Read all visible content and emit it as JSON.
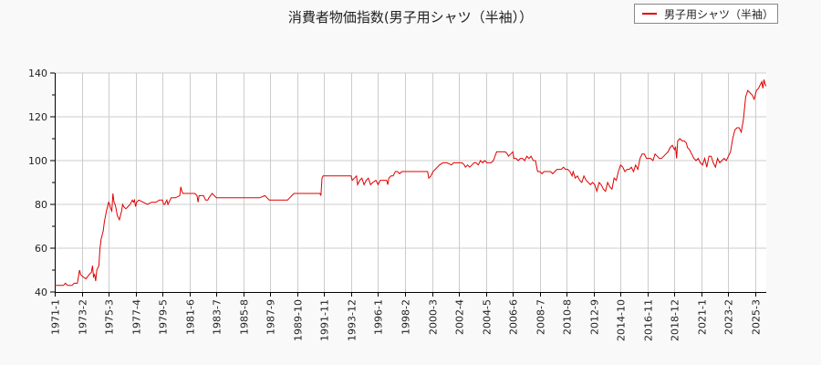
{
  "chart_data": {
    "type": "line",
    "title": "消費者物価指数(男子用シャツ（半袖））",
    "xlabel": "",
    "ylabel": "",
    "ylim": [
      40,
      140
    ],
    "yticks": [
      40,
      60,
      80,
      100,
      120,
      140
    ],
    "grid": true,
    "legend_position": "top-right",
    "x_tick_labels": [
      "1971-1",
      "1973-2",
      "1975-3",
      "1977-4",
      "1979-5",
      "1981-6",
      "1983-7",
      "1985-8",
      "1987-9",
      "1989-10",
      "1991-11",
      "1993-12",
      "1996-1",
      "1998-2",
      "2000-3",
      "2002-4",
      "2004-5",
      "2006-6",
      "2008-7",
      "2010-8",
      "2012-9",
      "2014-10",
      "2016-11",
      "2018-12",
      "2021-1",
      "2023-2",
      "2025-3"
    ],
    "series": [
      {
        "name": "男子用シャツ（半袖）",
        "color": "#e00000",
        "points_month_index_value": [
          [
            0,
            43
          ],
          [
            8,
            43
          ],
          [
            10,
            44
          ],
          [
            12,
            43
          ],
          [
            16,
            43
          ],
          [
            18,
            44
          ],
          [
            21,
            44
          ],
          [
            23,
            50
          ],
          [
            24,
            48
          ],
          [
            26,
            47
          ],
          [
            29,
            46
          ],
          [
            32,
            48
          ],
          [
            34,
            49
          ],
          [
            35,
            52
          ],
          [
            36,
            47
          ],
          [
            37,
            48
          ],
          [
            38,
            45
          ],
          [
            39,
            50
          ],
          [
            41,
            52
          ],
          [
            42,
            60
          ],
          [
            43,
            64
          ],
          [
            45,
            68
          ],
          [
            46,
            72
          ],
          [
            48,
            77
          ],
          [
            50,
            81
          ],
          [
            51,
            80
          ],
          [
            52,
            78
          ],
          [
            53,
            77
          ],
          [
            54,
            85
          ],
          [
            55,
            81
          ],
          [
            56,
            80
          ],
          [
            57,
            78
          ],
          [
            58,
            75
          ],
          [
            60,
            73
          ],
          [
            62,
            77
          ],
          [
            63,
            80
          ],
          [
            64,
            79
          ],
          [
            66,
            78
          ],
          [
            68,
            79
          ],
          [
            70,
            80
          ],
          [
            72,
            82
          ],
          [
            73,
            81
          ],
          [
            74,
            82
          ],
          [
            75,
            79
          ],
          [
            76,
            81
          ],
          [
            78,
            82
          ],
          [
            82,
            81
          ],
          [
            86,
            80
          ],
          [
            90,
            81
          ],
          [
            94,
            81
          ],
          [
            97,
            82
          ],
          [
            100,
            82
          ],
          [
            101,
            80
          ],
          [
            102,
            80
          ],
          [
            104,
            82
          ],
          [
            105,
            80
          ],
          [
            107,
            82
          ],
          [
            108,
            83
          ],
          [
            112,
            83
          ],
          [
            116,
            84
          ],
          [
            117,
            88
          ],
          [
            118,
            86
          ],
          [
            119,
            85
          ],
          [
            122,
            85
          ],
          [
            126,
            85
          ],
          [
            130,
            85
          ],
          [
            132,
            84
          ],
          [
            133,
            81
          ],
          [
            134,
            84
          ],
          [
            138,
            84
          ],
          [
            140,
            82
          ],
          [
            142,
            82
          ],
          [
            143,
            83
          ],
          [
            146,
            85
          ],
          [
            148,
            84
          ],
          [
            150,
            83
          ],
          [
            160,
            83
          ],
          [
            170,
            83
          ],
          [
            180,
            83
          ],
          [
            190,
            83
          ],
          [
            195,
            84
          ],
          [
            197,
            83
          ],
          [
            199,
            82
          ],
          [
            202,
            82
          ],
          [
            210,
            82
          ],
          [
            216,
            82
          ],
          [
            218,
            83
          ],
          [
            220,
            84
          ],
          [
            222,
            85
          ],
          [
            228,
            85
          ],
          [
            235,
            85
          ],
          [
            240,
            85
          ],
          [
            246,
            85
          ],
          [
            247,
            84
          ],
          [
            248,
            92
          ],
          [
            249,
            93
          ],
          [
            260,
            93
          ],
          [
            270,
            93
          ],
          [
            275,
            93
          ],
          [
            276,
            91
          ],
          [
            278,
            92
          ],
          [
            280,
            93
          ],
          [
            281,
            89
          ],
          [
            283,
            91
          ],
          [
            285,
            92
          ],
          [
            287,
            89
          ],
          [
            289,
            91
          ],
          [
            291,
            92
          ],
          [
            293,
            89
          ],
          [
            295,
            90
          ],
          [
            298,
            91
          ],
          [
            300,
            89
          ],
          [
            302,
            91
          ],
          [
            305,
            91
          ],
          [
            308,
            91
          ],
          [
            309,
            89
          ],
          [
            310,
            92
          ],
          [
            312,
            93
          ],
          [
            314,
            93
          ],
          [
            316,
            95
          ],
          [
            318,
            95
          ],
          [
            320,
            94
          ],
          [
            322,
            95
          ],
          [
            330,
            95
          ],
          [
            340,
            95
          ],
          [
            346,
            95
          ],
          [
            347,
            92
          ],
          [
            349,
            93
          ],
          [
            351,
            95
          ],
          [
            353,
            96
          ],
          [
            355,
            97
          ],
          [
            357,
            98
          ],
          [
            360,
            99
          ],
          [
            364,
            99
          ],
          [
            368,
            98
          ],
          [
            370,
            99
          ],
          [
            375,
            99
          ],
          [
            378,
            99
          ],
          [
            380,
            98
          ],
          [
            381,
            97
          ],
          [
            383,
            98
          ],
          [
            385,
            97
          ],
          [
            387,
            98
          ],
          [
            389,
            99
          ],
          [
            391,
            99
          ],
          [
            393,
            98
          ],
          [
            395,
            100
          ],
          [
            397,
            99
          ],
          [
            399,
            100
          ],
          [
            401,
            99
          ],
          [
            403,
            99
          ],
          [
            405,
            99
          ],
          [
            407,
            100
          ],
          [
            410,
            104
          ],
          [
            414,
            104
          ],
          [
            418,
            104
          ],
          [
            420,
            103
          ],
          [
            421,
            102
          ],
          [
            423,
            103
          ],
          [
            425,
            104
          ],
          [
            426,
            101
          ],
          [
            428,
            101
          ],
          [
            430,
            100
          ],
          [
            432,
            101
          ],
          [
            434,
            101
          ],
          [
            436,
            100
          ],
          [
            438,
            102
          ],
          [
            440,
            101
          ],
          [
            442,
            102
          ],
          [
            444,
            100
          ],
          [
            446,
            100
          ],
          [
            448,
            95
          ],
          [
            450,
            95
          ],
          [
            452,
            94
          ],
          [
            454,
            95
          ],
          [
            458,
            95
          ],
          [
            460,
            95
          ],
          [
            462,
            94
          ],
          [
            464,
            95
          ],
          [
            466,
            96
          ],
          [
            468,
            96
          ],
          [
            470,
            96
          ],
          [
            472,
            97
          ],
          [
            474,
            96
          ],
          [
            476,
            96
          ],
          [
            478,
            95
          ],
          [
            480,
            93
          ],
          [
            481,
            95
          ],
          [
            483,
            92
          ],
          [
            485,
            93
          ],
          [
            487,
            91
          ],
          [
            489,
            90
          ],
          [
            491,
            93
          ],
          [
            493,
            91
          ],
          [
            495,
            90
          ],
          [
            497,
            89
          ],
          [
            499,
            90
          ],
          [
            501,
            89
          ],
          [
            503,
            86
          ],
          [
            505,
            90
          ],
          [
            507,
            89
          ],
          [
            509,
            87
          ],
          [
            511,
            86
          ],
          [
            513,
            90
          ],
          [
            515,
            88
          ],
          [
            517,
            87
          ],
          [
            519,
            92
          ],
          [
            521,
            91
          ],
          [
            523,
            95
          ],
          [
            525,
            98
          ],
          [
            527,
            97
          ],
          [
            529,
            95
          ],
          [
            531,
            96
          ],
          [
            533,
            96
          ],
          [
            535,
            97
          ],
          [
            537,
            95
          ],
          [
            539,
            98
          ],
          [
            541,
            96
          ],
          [
            543,
            101
          ],
          [
            545,
            103
          ],
          [
            547,
            103
          ],
          [
            549,
            101
          ],
          [
            551,
            101
          ],
          [
            553,
            101
          ],
          [
            555,
            100
          ],
          [
            557,
            103
          ],
          [
            559,
            102
          ],
          [
            561,
            101
          ],
          [
            563,
            101
          ],
          [
            565,
            102
          ],
          [
            567,
            103
          ],
          [
            569,
            104
          ],
          [
            571,
            106
          ],
          [
            573,
            107
          ],
          [
            575,
            105
          ],
          [
            576,
            106
          ],
          [
            577,
            101
          ],
          [
            578,
            109
          ],
          [
            580,
            110
          ],
          [
            582,
            109
          ],
          [
            584,
            109
          ],
          [
            586,
            108
          ],
          [
            587,
            106
          ],
          [
            589,
            105
          ],
          [
            591,
            103
          ],
          [
            593,
            101
          ],
          [
            595,
            100
          ],
          [
            597,
            101
          ],
          [
            599,
            99
          ],
          [
            601,
            98
          ],
          [
            603,
            101
          ],
          [
            605,
            97
          ],
          [
            607,
            102
          ],
          [
            609,
            102
          ],
          [
            611,
            99
          ],
          [
            613,
            97
          ],
          [
            615,
            101
          ],
          [
            617,
            99
          ],
          [
            619,
            100
          ],
          [
            621,
            101
          ],
          [
            623,
            100
          ],
          [
            625,
            102
          ],
          [
            627,
            104
          ],
          [
            629,
            110
          ],
          [
            631,
            114
          ],
          [
            633,
            115
          ],
          [
            635,
            115
          ],
          [
            637,
            113
          ],
          [
            639,
            119
          ],
          [
            641,
            129
          ],
          [
            643,
            132
          ],
          [
            645,
            131
          ],
          [
            647,
            130
          ],
          [
            649,
            128
          ],
          [
            651,
            132
          ],
          [
            653,
            133
          ],
          [
            654,
            134
          ],
          [
            655,
            135
          ],
          [
            656,
            136
          ],
          [
            657,
            133
          ],
          [
            658,
            137
          ],
          [
            659,
            135
          ],
          [
            660,
            134
          ]
        ]
      }
    ]
  },
  "title": "消費者物価指数(男子用シャツ（半袖））",
  "legend": {
    "label": "男子用シャツ（半袖）"
  }
}
